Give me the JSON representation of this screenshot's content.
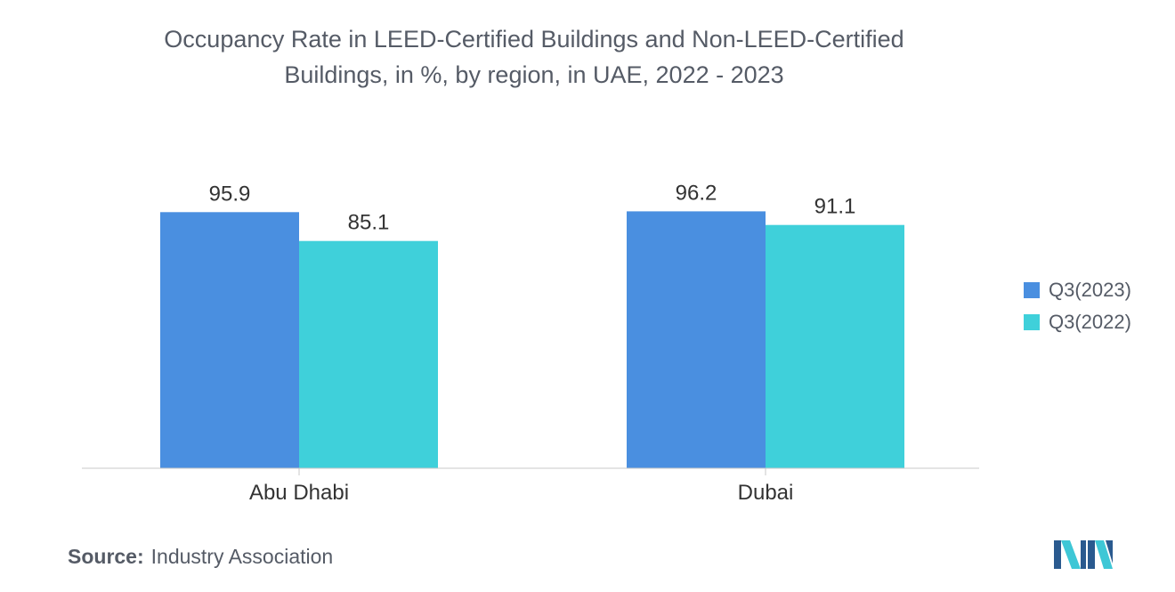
{
  "title_line1": "Occupancy Rate in LEED-Certified Buildings and Non-LEED-Certified",
  "title_line2": "Buildings, in %, by region, in UAE, 2022 - 2023",
  "source_label": "Source:",
  "source_text": "Industry Association",
  "colors": {
    "q3_2023": "#4a8fe0",
    "q3_2022": "#3fd0da",
    "text": "#555b66",
    "axis": "#c9c9c9"
  },
  "chart_data": {
    "type": "bar",
    "title": "Occupancy Rate in LEED-Certified Buildings and Non-LEED-Certified Buildings, in %, by region, in UAE, 2022 - 2023",
    "categories": [
      "Abu Dhabi",
      "Dubai"
    ],
    "series": [
      {
        "name": "Q3(2023)",
        "values": [
          95.9,
          96.2
        ]
      },
      {
        "name": "Q3(2022)",
        "values": [
          85.1,
          91.1
        ]
      }
    ],
    "xlabel": "",
    "ylabel": "",
    "ylim": [
      0,
      100
    ],
    "grid": false,
    "legend_position": "right"
  }
}
